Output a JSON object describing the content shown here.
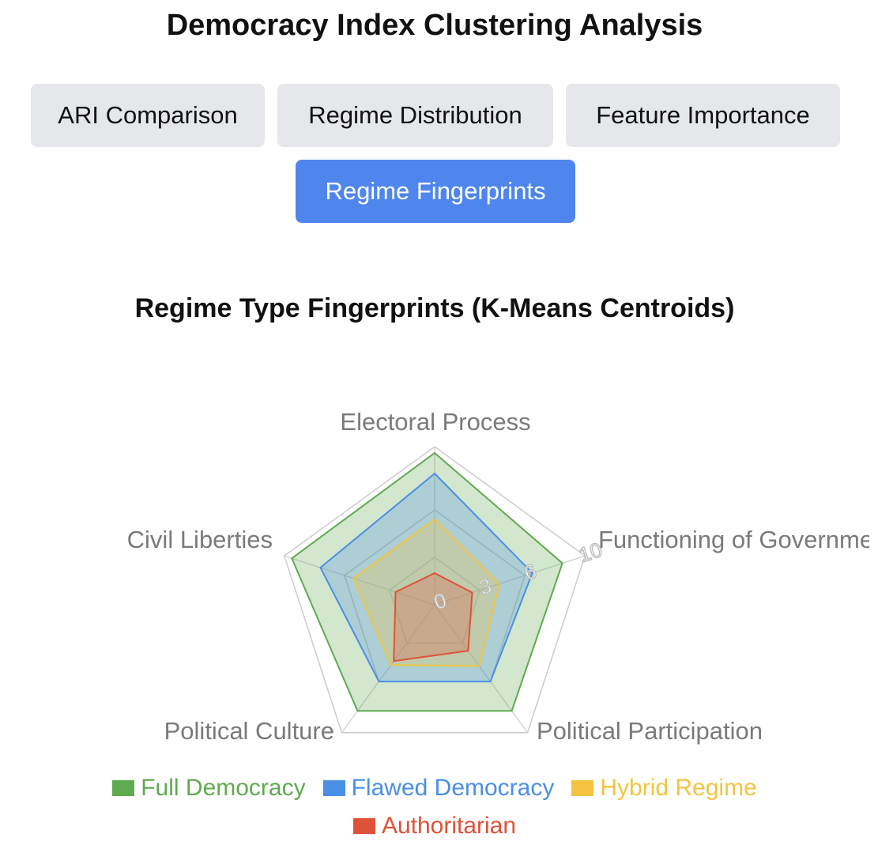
{
  "header": {
    "title": "Democracy Index Clustering Analysis"
  },
  "tabs": [
    {
      "label": "ARI Comparison",
      "active": false
    },
    {
      "label": "Regime Distribution",
      "active": false
    },
    {
      "label": "Feature Importance",
      "active": false
    },
    {
      "label": "Regime Fingerprints",
      "active": true
    }
  ],
  "colors": {
    "active_tab": "#4f86ee",
    "inactive_tab": "#e5e7eb",
    "grid": "#cccccc",
    "axis_label": "#7a7a7a"
  },
  "chart_data": {
    "type": "radar",
    "title": "Regime Type Fingerprints (K-Means Centroids)",
    "axes": [
      "Electoral Process",
      "Functioning of Government",
      "Political Participation",
      "Political Culture",
      "Civil Liberties"
    ],
    "rlim": [
      0,
      10
    ],
    "ticks": [
      "0",
      "3",
      "6",
      "10"
    ],
    "grid": true,
    "legend_position": "bottom",
    "series": [
      {
        "name": "Full Democracy",
        "color": "#5faa50",
        "values": [
          9.6,
          8.5,
          8.3,
          8.3,
          9.5
        ]
      },
      {
        "name": "Flawed Democracy",
        "color": "#4a8fe6",
        "values": [
          8.3,
          6.5,
          6.0,
          6.0,
          7.6
        ]
      },
      {
        "name": "Hybrid Regime",
        "color": "#f2c440",
        "values": [
          5.4,
          4.3,
          4.8,
          4.7,
          5.4
        ]
      },
      {
        "name": "Authoritarian",
        "color": "#dd5238",
        "values": [
          2.0,
          2.5,
          3.6,
          4.4,
          2.6
        ]
      }
    ]
  }
}
